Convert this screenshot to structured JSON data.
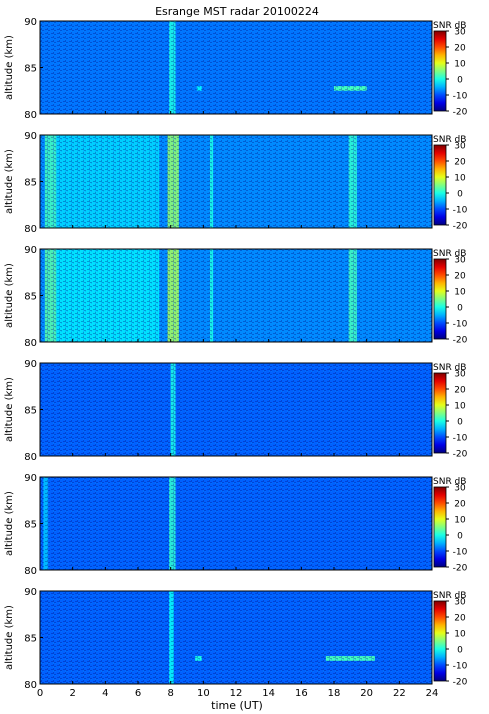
{
  "chart_data": {
    "type": "heatmap",
    "title": "Esrange MST radar 20100224",
    "xlabel": "time (UT)",
    "ylabel": "altitude (km)",
    "xlim": [
      0,
      24
    ],
    "ylim": [
      80,
      90
    ],
    "x_ticks": [
      "0",
      "2",
      "4",
      "6",
      "8",
      "10",
      "12",
      "14",
      "16",
      "18",
      "20",
      "22",
      "24"
    ],
    "y_ticks": [
      "80",
      "85",
      "90"
    ],
    "colorbar": {
      "label": "SNR dB",
      "range": [
        -20,
        30
      ],
      "ticks": [
        "30",
        "20",
        "10",
        "0",
        "-10",
        "-20"
      ]
    },
    "panels": [
      {
        "background_snr_db": -8,
        "features": [
          {
            "kind": "column",
            "x_start": 7.9,
            "x_end": 8.3,
            "snr_db": 0
          },
          {
            "kind": "patch",
            "x_start": 18.0,
            "x_end": 20.0,
            "alt_min": 82.5,
            "alt_max": 83.0,
            "snr_db": 2
          },
          {
            "kind": "patch",
            "x_start": 9.6,
            "x_end": 9.9,
            "alt_min": 82.5,
            "alt_max": 83.0,
            "snr_db": -2
          }
        ]
      },
      {
        "background_snr_db": -7,
        "features": [
          {
            "kind": "column",
            "x_start": 0.3,
            "x_end": 1.0,
            "snr_db": 2
          },
          {
            "kind": "column",
            "x_start": 1.0,
            "x_end": 7.3,
            "snr_db": -3
          },
          {
            "kind": "column",
            "x_start": 7.8,
            "x_end": 8.5,
            "snr_db": 6
          },
          {
            "kind": "column",
            "x_start": 10.4,
            "x_end": 10.6,
            "snr_db": 0
          },
          {
            "kind": "column",
            "x_start": 18.9,
            "x_end": 19.4,
            "snr_db": 1
          }
        ]
      },
      {
        "background_snr_db": -7,
        "features": [
          {
            "kind": "column",
            "x_start": 0.3,
            "x_end": 1.0,
            "snr_db": 3
          },
          {
            "kind": "column",
            "x_start": 1.0,
            "x_end": 7.3,
            "snr_db": -2
          },
          {
            "kind": "column",
            "x_start": 7.8,
            "x_end": 8.5,
            "snr_db": 7
          },
          {
            "kind": "column",
            "x_start": 10.4,
            "x_end": 10.6,
            "snr_db": 0
          },
          {
            "kind": "column",
            "x_start": 18.9,
            "x_end": 19.4,
            "snr_db": 2
          }
        ]
      },
      {
        "background_snr_db": -9,
        "features": [
          {
            "kind": "column",
            "x_start": 8.0,
            "x_end": 8.3,
            "snr_db": 0
          }
        ]
      },
      {
        "background_snr_db": -9,
        "features": [
          {
            "kind": "column",
            "x_start": 0.2,
            "x_end": 0.5,
            "snr_db": -4
          },
          {
            "kind": "column",
            "x_start": 7.9,
            "x_end": 8.3,
            "snr_db": 1
          }
        ]
      },
      {
        "background_snr_db": -9,
        "features": [
          {
            "kind": "column",
            "x_start": 7.9,
            "x_end": 8.2,
            "snr_db": -1
          },
          {
            "kind": "patch",
            "x_start": 9.5,
            "x_end": 9.9,
            "alt_min": 82.5,
            "alt_max": 83.0,
            "snr_db": 0
          },
          {
            "kind": "patch",
            "x_start": 17.5,
            "x_end": 20.5,
            "alt_min": 82.5,
            "alt_max": 83.0,
            "snr_db": 2
          }
        ]
      }
    ]
  }
}
